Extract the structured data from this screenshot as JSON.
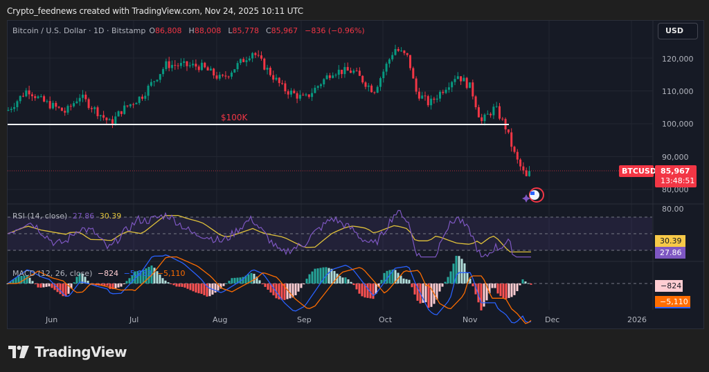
{
  "caption": "Crypto_feednews created with TradingView.com, Nov 24, 2025 10:11 UTC",
  "symbol_legend": {
    "title": "Bitcoin / U.S. Dollar · 1D · Bitstamp",
    "open_label": "O",
    "open": "86,808",
    "high_label": "H",
    "high": "88,008",
    "low_label": "L",
    "low": "85,778",
    "close_label": "C",
    "close": "85,967",
    "change": "−836 (−0.96%)"
  },
  "currency_button": "USD",
  "price_axis": [
    "120,000",
    "110,000",
    "100,000",
    "90,000",
    "80,000"
  ],
  "annotation_100k": "$100K",
  "symbol_tag": "BTCUSD",
  "last_price": "85,967",
  "countdown": "13:48:51",
  "rsi": {
    "label": "RSI (14, close)",
    "value": "27.86",
    "ma_value": "30.39",
    "axis_top": "80.00"
  },
  "macd": {
    "label": "MACD (12, 26, close)",
    "histogram": "−824",
    "macd_line": "−5,933",
    "signal": "−5,110"
  },
  "time_axis": [
    "Jun",
    "Jul",
    "Aug",
    "Sep",
    "Oct",
    "Nov",
    "Dec",
    "2026"
  ],
  "brand": "TradingView",
  "colors": {
    "up": "#089981",
    "down": "#f23645",
    "rsi_line": "#7e57c2",
    "rsi_ma": "#e0c23a",
    "macd_line": "#2962ff",
    "signal_line": "#ff6d00",
    "background": "#161a25"
  },
  "chart_data": {
    "type": "candlestick",
    "title": "Bitcoin / U.S. Dollar · 1D · Bitstamp",
    "xlabel": "",
    "ylabel": "USD",
    "ylim": [
      78000,
      128000
    ],
    "x_ticks": [
      "Jun",
      "Jul",
      "Aug",
      "Sep",
      "Oct",
      "Nov",
      "Dec",
      "2026"
    ],
    "y_ticks": [
      80000,
      90000,
      100000,
      110000,
      120000
    ],
    "horizontal_lines": [
      {
        "label": "$100K",
        "value": 100000
      }
    ],
    "monthly_approx_close": [
      {
        "month": "Jun",
        "value": 105500
      },
      {
        "month": "Jul",
        "value": 107000
      },
      {
        "month": "Aug",
        "value": 118000
      },
      {
        "month": "Sep",
        "value": 109500
      },
      {
        "month": "Oct",
        "value": 118000
      },
      {
        "month": "Nov",
        "value": 110000
      },
      {
        "month": "Nov 24",
        "value": 85967
      }
    ],
    "last": {
      "open": 86808,
      "high": 88008,
      "low": 85778,
      "close": 85967,
      "change": -836,
      "change_pct": -0.96
    },
    "indicators": {
      "rsi": {
        "period": 14,
        "value": 27.86,
        "ma": 30.39,
        "bands": [
          70,
          50,
          30
        ]
      },
      "macd": {
        "fast": 12,
        "slow": 26,
        "histogram": -824,
        "macd": -5933,
        "signal": -5110
      }
    },
    "grid": true
  }
}
